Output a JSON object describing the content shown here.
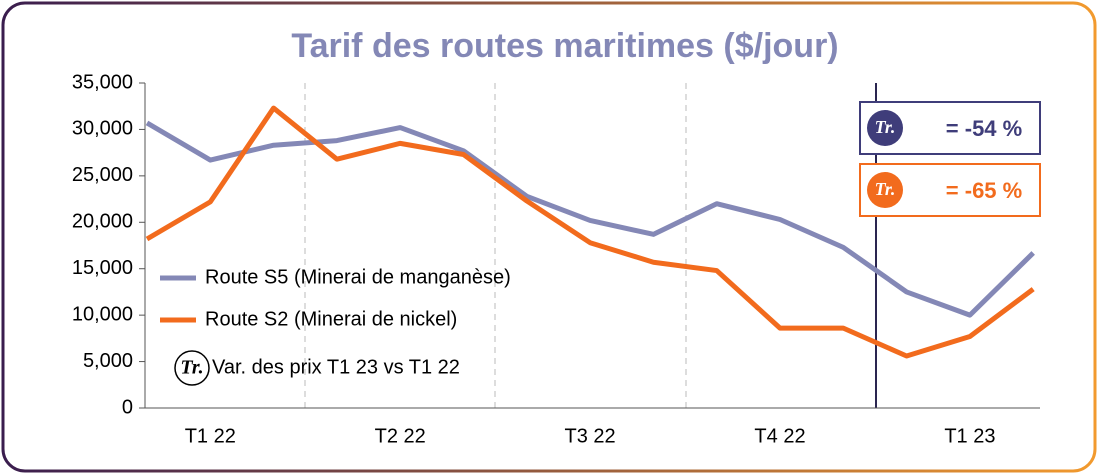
{
  "chart_data": {
    "type": "line",
    "title": "Tarif des routes maritimes ($/jour)",
    "categories": [
      null,
      "T1 22",
      null,
      null,
      "T2 22",
      null,
      null,
      "T3 22",
      null,
      null,
      "T4 22",
      null,
      null,
      "T1 23",
      null
    ],
    "series": [
      {
        "name": "Route S5 (Minerai de manganèse)",
        "color": "#8488b6",
        "values": [
          30700,
          26700,
          28300,
          28800,
          30200,
          27700,
          22800,
          20200,
          18700,
          22000,
          20300,
          17300,
          12500,
          10000,
          16700
        ]
      },
      {
        "name": "Route S2 (Minerai de nickel)",
        "color": "#f26b1d",
        "values": [
          18200,
          22200,
          32300,
          26800,
          28500,
          27300,
          22300,
          17800,
          15700,
          14800,
          8600,
          8600,
          5600,
          7700,
          12800
        ]
      }
    ],
    "ylim": [
      0,
      35000
    ],
    "yticks": [
      0,
      {
        "value": 5000,
        "label": "5,000"
      },
      {
        "value": 10000,
        "label": "10,000"
      },
      {
        "value": 15000,
        "label": "15,000"
      },
      {
        "value": 20000,
        "label": "20,000"
      },
      {
        "value": 25000,
        "label": "25,000"
      },
      {
        "value": 30000,
        "label": "30,000"
      },
      {
        "value": 35000,
        "label": "35,000"
      }
    ],
    "annotations": {
      "badge": "Tr.",
      "note": "Var. des prix T1 23 vs T1 22",
      "change_s5": "= -54 %",
      "change_s2": "= -65 %"
    }
  }
}
